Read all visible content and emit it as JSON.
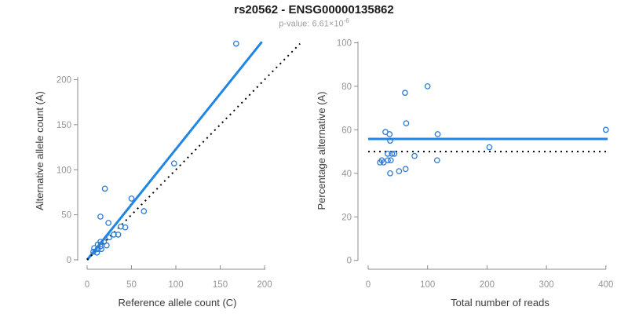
{
  "title": "rs20562 - ENSG00000135862",
  "subtitle": {
    "text": "p-value: 6.61×10",
    "exponent": "-6"
  },
  "colors": {
    "fit_line": "#1f86e8",
    "points": "#2d7bd5",
    "identity_line": "#000000",
    "axis": "#8c8c8c",
    "tick_label": "#969696",
    "axis_label": "#3a3a3a",
    "title": "#1a1a1a",
    "subtitle": "#9e9e9e"
  },
  "chart_data": [
    {
      "type": "scatter",
      "xlabel": "Reference allele count (C)",
      "ylabel": "Alternative allele count (A)",
      "xlim": [
        0,
        245
      ],
      "ylim": [
        0,
        245
      ],
      "xticks": [
        0,
        50,
        100,
        150,
        200
      ],
      "yticks": [
        0,
        50,
        100,
        150,
        200
      ],
      "grid": false,
      "points": [
        [
          7,
          9
        ],
        [
          11,
          8
        ],
        [
          8,
          13
        ],
        [
          12,
          12
        ],
        [
          16,
          12
        ],
        [
          12,
          17
        ],
        [
          15,
          15
        ],
        [
          22,
          16
        ],
        [
          15,
          20
        ],
        [
          19,
          20
        ],
        [
          25,
          25
        ],
        [
          30,
          28
        ],
        [
          35,
          28
        ],
        [
          38,
          37
        ],
        [
          43,
          36
        ],
        [
          24,
          41
        ],
        [
          15,
          48
        ],
        [
          64,
          54
        ],
        [
          50,
          68
        ],
        [
          20,
          79
        ],
        [
          98,
          107
        ],
        [
          168,
          240
        ]
      ],
      "lines": [
        {
          "name": "regression-fit-line",
          "style": "solid",
          "color_key": "fit_line",
          "x1": 0,
          "y1": 0,
          "x2": 197,
          "y2": 242
        },
        {
          "name": "identity-line",
          "style": "dotted",
          "color_key": "identity_line",
          "x1": 0,
          "y1": 0,
          "x2": 240,
          "y2": 240
        }
      ]
    },
    {
      "type": "scatter",
      "xlabel": "Total number of reads",
      "ylabel": "Percentage alternative (A)",
      "xlim": [
        0,
        410
      ],
      "ylim": [
        0,
        100
      ],
      "xticks": [
        0,
        100,
        200,
        300,
        400
      ],
      "yticks": [
        0,
        20,
        40,
        60,
        80,
        100
      ],
      "grid": false,
      "points": [
        [
          20,
          45
        ],
        [
          26,
          45
        ],
        [
          33,
          46
        ],
        [
          37,
          40
        ],
        [
          52,
          41
        ],
        [
          63,
          42
        ],
        [
          29,
          59
        ],
        [
          36,
          58
        ],
        [
          37,
          55
        ],
        [
          33,
          49
        ],
        [
          40,
          49
        ],
        [
          44,
          49
        ],
        [
          23,
          46
        ],
        [
          38,
          46
        ],
        [
          78,
          48
        ],
        [
          116,
          46
        ],
        [
          117,
          58
        ],
        [
          62,
          77
        ],
        [
          64,
          63
        ],
        [
          100,
          80
        ],
        [
          204,
          52
        ],
        [
          400,
          60
        ]
      ],
      "lines": [
        {
          "name": "mean-fit-line",
          "style": "solid",
          "color_key": "fit_line",
          "x1": 0,
          "y1": 55.8,
          "x2": 403,
          "y2": 55.8
        },
        {
          "name": "expected-50pct-line",
          "style": "dotted",
          "color_key": "identity_line",
          "x1": 0,
          "y1": 50,
          "x2": 403,
          "y2": 50
        }
      ]
    }
  ]
}
